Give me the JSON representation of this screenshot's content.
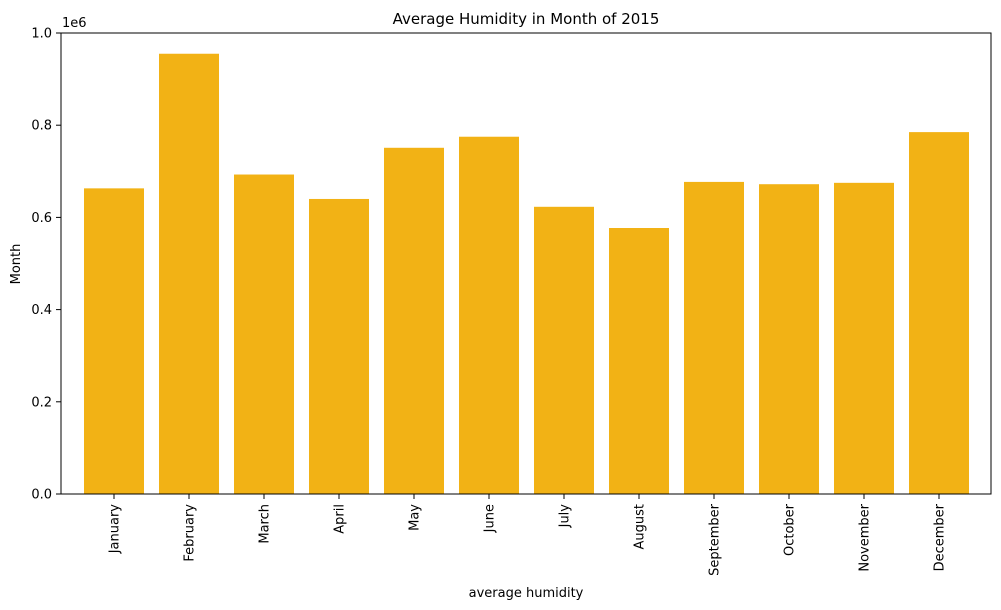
{
  "chart_data": {
    "type": "bar",
    "title": "Average Humidity in  Month of 2015",
    "xlabel": "average humidity",
    "ylabel": "Month",
    "y_multiplier_label": "1e6",
    "categories": [
      "January",
      "February",
      "March",
      "April",
      "May",
      "June",
      "July",
      "August",
      "September",
      "October",
      "November",
      "December"
    ],
    "values": [
      663000,
      955000,
      693000,
      640000,
      751000,
      775000,
      623000,
      577000,
      677000,
      672000,
      675000,
      785000
    ],
    "ylim": [
      0,
      1000000
    ],
    "yticks": [
      0,
      200000,
      400000,
      600000,
      800000,
      1000000
    ],
    "ytick_labels": [
      "0.0",
      "0.2",
      "0.4",
      "0.6",
      "0.8",
      "1.0"
    ],
    "bar_color": "#f2b215",
    "grid": false,
    "legend": "none"
  }
}
